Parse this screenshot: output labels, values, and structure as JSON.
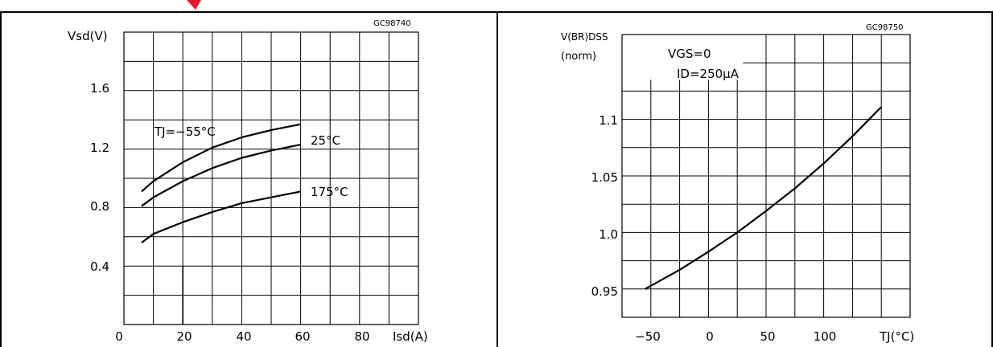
{
  "chart_data": [
    {
      "type": "line",
      "code": "GC98740",
      "ylabel_main": "Vsd(V)",
      "xlabel_main": "Isd(A)",
      "xlim": [
        0,
        100
      ],
      "ylim": [
        0,
        2.0
      ],
      "x_ticks": [
        0,
        20,
        40,
        60,
        80
      ],
      "x_tick_labels": [
        "0",
        "20",
        "40",
        "60",
        "80"
      ],
      "y_ticks": [
        0.4,
        0.8,
        1.2,
        1.6
      ],
      "y_tick_labels": [
        "0.4",
        "0.8",
        "1.2",
        "1.6"
      ],
      "grid": true,
      "series": [
        {
          "name": "TJ=−55°C",
          "x": [
            6,
            10,
            20,
            30,
            40,
            50,
            60
          ],
          "y": [
            0.91,
            0.98,
            1.11,
            1.21,
            1.28,
            1.33,
            1.37
          ]
        },
        {
          "name": "25°C",
          "x": [
            6,
            10,
            20,
            30,
            40,
            50,
            60
          ],
          "y": [
            0.81,
            0.87,
            0.98,
            1.07,
            1.14,
            1.19,
            1.23
          ]
        },
        {
          "name": "175°C",
          "x": [
            6,
            10,
            20,
            30,
            40,
            50,
            60
          ],
          "y": [
            0.56,
            0.62,
            0.7,
            0.77,
            0.83,
            0.87,
            0.91
          ]
        }
      ]
    },
    {
      "type": "line",
      "code": "GC98750",
      "ylabel_line1": "V(BR)DSS",
      "ylabel_line2": "(norm)",
      "xlabel_main": "TJ(°C)",
      "annotation_line1": "VGS=0",
      "annotation_line2": "ID=250μA",
      "xlim": [
        -75,
        175
      ],
      "ylim": [
        0.925,
        1.175
      ],
      "x_ticks": [
        -50,
        0,
        50,
        100
      ],
      "x_tick_labels": [
        "−50",
        "0",
        "50",
        "100"
      ],
      "y_ticks": [
        0.95,
        1.0,
        1.05,
        1.1
      ],
      "y_tick_labels": [
        "0.95",
        "1.0",
        "1.05",
        "1.1"
      ],
      "grid": true,
      "series": [
        {
          "name": "",
          "x": [
            -55,
            -25,
            0,
            25,
            50,
            75,
            100,
            125,
            150
          ],
          "y": [
            0.95,
            0.967,
            0.983,
            1.0,
            1.019,
            1.039,
            1.061,
            1.085,
            1.111
          ]
        }
      ]
    }
  ],
  "colors": {
    "line": "#000000",
    "wedge": "#e8192c"
  }
}
